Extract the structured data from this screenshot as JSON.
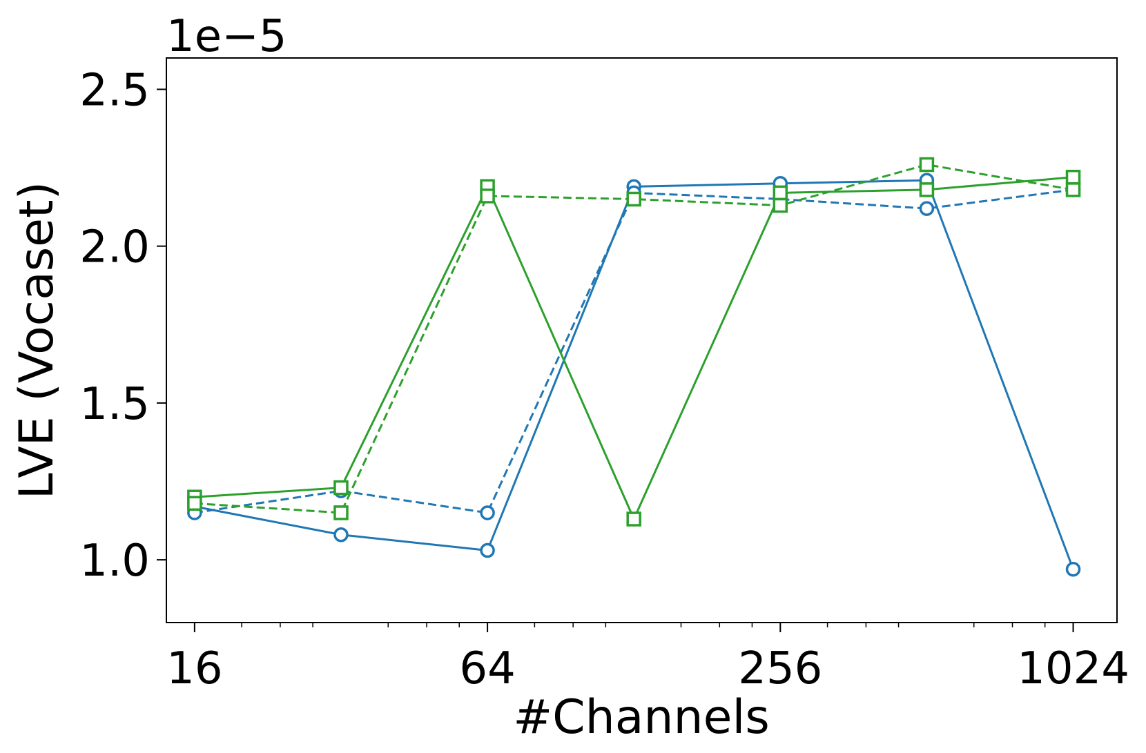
{
  "chart_data": {
    "type": "line",
    "xlabel": "#Channels",
    "ylabel": "LVE (Vocaset)",
    "y_offset_label": "1e−5",
    "x_scale": "log2",
    "x_ticks": [
      16,
      64,
      256,
      1024
    ],
    "x_tick_labels": [
      "16",
      "64",
      "256",
      "1024"
    ],
    "y_ticks": [
      1.0,
      1.5,
      2.0,
      2.5
    ],
    "y_tick_labels": [
      "1.0",
      "1.5",
      "2.0",
      "2.5"
    ],
    "xlim": [
      14,
      1260
    ],
    "ylim": [
      0.8,
      2.6
    ],
    "grid": false,
    "x": [
      16,
      32,
      64,
      128,
      256,
      512,
      1024
    ],
    "series": [
      {
        "color": "#1f77b4",
        "linestyle": "solid",
        "marker": "circle",
        "values": [
          1.17,
          1.08,
          1.03,
          2.19,
          2.2,
          2.21,
          0.97
        ]
      },
      {
        "color": "#1f77b4",
        "linestyle": "dashed",
        "marker": "circle",
        "values": [
          1.15,
          1.22,
          1.15,
          2.17,
          2.15,
          2.12,
          2.18
        ]
      },
      {
        "color": "#2ca02c",
        "linestyle": "solid",
        "marker": "square",
        "values": [
          1.2,
          1.23,
          2.19,
          1.13,
          2.17,
          2.18,
          2.22
        ]
      },
      {
        "color": "#2ca02c",
        "linestyle": "dashed",
        "marker": "square",
        "values": [
          1.18,
          1.15,
          2.16,
          2.15,
          2.13,
          2.26,
          2.18
        ]
      }
    ]
  }
}
